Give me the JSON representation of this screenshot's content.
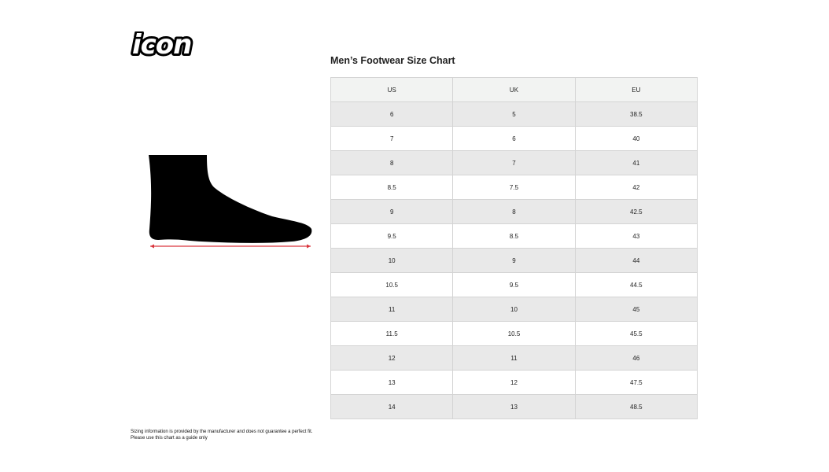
{
  "brand": {
    "logo_text": "icon"
  },
  "title": "Men’s Footwear Size Chart",
  "table": {
    "headers": [
      "US",
      "UK",
      "EU"
    ],
    "rows": [
      [
        "6",
        "5",
        "38.5"
      ],
      [
        "7",
        "6",
        "40"
      ],
      [
        "8",
        "7",
        "41"
      ],
      [
        "8.5",
        "7.5",
        "42"
      ],
      [
        "9",
        "8",
        "42.5"
      ],
      [
        "9.5",
        "8.5",
        "43"
      ],
      [
        "10",
        "9",
        "44"
      ],
      [
        "10.5",
        "9.5",
        "44.5"
      ],
      [
        "11",
        "10",
        "45"
      ],
      [
        "11.5",
        "10.5",
        "45.5"
      ],
      [
        "12",
        "11",
        "46"
      ],
      [
        "13",
        "12",
        "47.5"
      ],
      [
        "14",
        "13",
        "48.5"
      ]
    ]
  },
  "footnote": {
    "line1": "Sizing information is provided by the manufacturer and does not guarantee a perfect fit.",
    "line2": "Please use this chart as a guide only"
  },
  "colors": {
    "measure_arrow": "#d9363e",
    "foot": "#000000"
  }
}
